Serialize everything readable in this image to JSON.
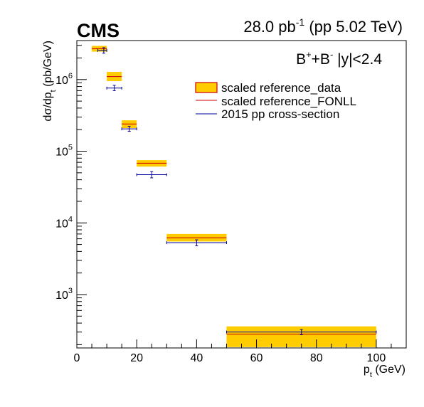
{
  "header": {
    "experiment": "CMS",
    "luminosity": "28.0 pb",
    "luminosity_exp": "-1",
    "energy": " (pp 5.02 TeV)"
  },
  "annotation": {
    "particle": "B",
    "particle_sup1": "+",
    "plus": "+B",
    "particle_sup2": "-",
    "rapidity": " |y|<2.4"
  },
  "chart_data": {
    "type": "scatter",
    "xlabel": "p",
    "xlabel_sub": "t",
    "xlabel_unit": " (GeV)",
    "ylabel": "dσ/dp",
    "ylabel_sub": "t",
    "ylabel_unit": " (pb/GeV)",
    "xlim": [
      0,
      110
    ],
    "ylim": [
      180,
      3500000
    ],
    "yscale": "log",
    "x_ticks": [
      0,
      20,
      40,
      60,
      80,
      100
    ],
    "x_tick_labels": [
      "0",
      "20",
      "40",
      "60",
      "80",
      "100"
    ],
    "y_ticks": [
      1000,
      10000,
      100000,
      1000000
    ],
    "y_tick_base": "10",
    "y_tick_exps": [
      "3",
      "4",
      "5",
      "6"
    ],
    "legend": {
      "position": "top-right",
      "entries": [
        "scaled reference_data",
        "scaled reference_FONLL",
        "2015 pp cross-section"
      ]
    },
    "colors": {
      "band_fill": "#ffcc00",
      "band_edge": "#cc0000",
      "fonll": "#cc0000",
      "pp2015": "#000099"
    },
    "series": [
      {
        "name": "scaled reference_data",
        "bins": [
          {
            "xlo": 5,
            "xhi": 10,
            "y": 2700000,
            "ylo": 2450000,
            "yhi": 2950000
          },
          {
            "xlo": 10,
            "xhi": 15,
            "y": 1100000,
            "ylo": 950000,
            "yhi": 1280000
          },
          {
            "xlo": 15,
            "xhi": 20,
            "y": 240000,
            "ylo": 210000,
            "yhi": 270000
          },
          {
            "xlo": 20,
            "xhi": 30,
            "y": 68000,
            "ylo": 61000,
            "yhi": 75000
          },
          {
            "xlo": 30,
            "xhi": 50,
            "y": 6200.0,
            "ylo": 5500,
            "yhi": 7000
          },
          {
            "xlo": 50,
            "xhi": 100,
            "y": 280,
            "ylo": 185,
            "yhi": 360
          }
        ]
      },
      {
        "name": "scaled reference_FONLL",
        "bins": [
          {
            "xlo": 5,
            "xhi": 10,
            "y": 2700000
          },
          {
            "xlo": 10,
            "xhi": 15,
            "y": 1100000
          },
          {
            "xlo": 15,
            "xhi": 20,
            "y": 240000
          },
          {
            "xlo": 20,
            "xhi": 30,
            "y": 68000
          },
          {
            "xlo": 30,
            "xhi": 50,
            "y": 6200
          },
          {
            "xlo": 50,
            "xhi": 100,
            "y": 280
          }
        ]
      },
      {
        "name": "2015 pp cross-section",
        "points": [
          {
            "x": 9,
            "xlo": 7,
            "xhi": 10,
            "y": 2550000,
            "ylo": 2330000,
            "yhi": 2790000
          },
          {
            "x": 12.5,
            "xlo": 10,
            "xhi": 15,
            "y": 760000,
            "ylo": 700000,
            "yhi": 830000
          },
          {
            "x": 17.5,
            "xlo": 15,
            "xhi": 20,
            "y": 205000,
            "ylo": 190000,
            "yhi": 222000
          },
          {
            "x": 25,
            "xlo": 20,
            "xhi": 30,
            "y": 47000,
            "ylo": 42500,
            "yhi": 52000
          },
          {
            "x": 40,
            "xlo": 30,
            "xhi": 50,
            "y": 5300,
            "ylo": 4800,
            "yhi": 5800
          },
          {
            "x": 75,
            "xlo": 50,
            "xhi": 100,
            "y": 300,
            "ylo": 275,
            "yhi": 325
          }
        ]
      }
    ]
  }
}
